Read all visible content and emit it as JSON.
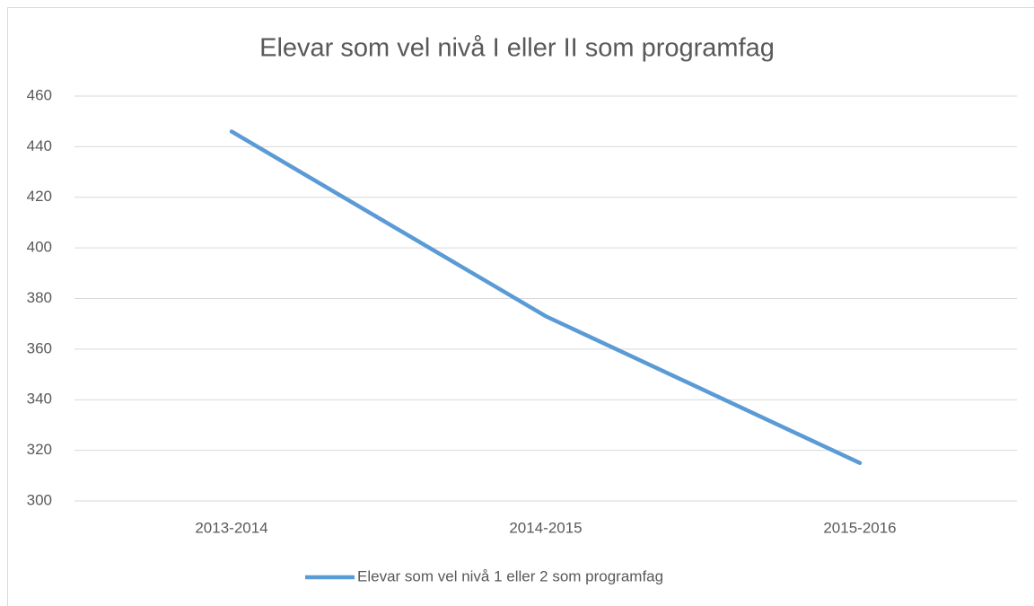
{
  "chart_data": {
    "type": "line",
    "title": "Elevar som vel nivå I eller II som programfag",
    "categories": [
      "2013-2014",
      "2014-2015",
      "2015-2016"
    ],
    "series": [
      {
        "name": "Elevar som vel nivå 1 eller 2 som programfag",
        "color": "#5b9bd5",
        "values": [
          446,
          373,
          315
        ]
      }
    ],
    "ylim": [
      300,
      460
    ],
    "yticks": [
      300,
      320,
      340,
      360,
      380,
      400,
      420,
      440,
      460
    ],
    "grid": true,
    "legend": "bottom"
  }
}
